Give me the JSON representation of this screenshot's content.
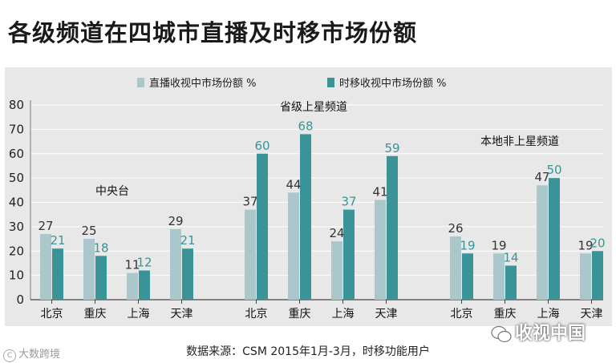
{
  "title": "各级频道在四城市直播及时移市场份额",
  "source": "数据来源：CSM 2015年1月-3月，时移功能用户",
  "watermarks": {
    "left_text": "大数跨境",
    "left_icon": "copyright-c-icon",
    "right_text": "收视中国",
    "right_icon": "wechat-logo-icon"
  },
  "colors": {
    "live": "#aac8cb",
    "timeshift": "#3a9497",
    "live_label": "#333333",
    "timeshift_label": "#3a9497",
    "panel_bg": "#e8e8e8",
    "grid": "#ffffff"
  },
  "chart_data": {
    "type": "bar",
    "ylim": [
      0,
      80
    ],
    "yticks": [
      0,
      10,
      20,
      30,
      40,
      50,
      60,
      70,
      80
    ],
    "legend": {
      "placement": "top",
      "entries": [
        "直播收视中市场份额 %",
        "时移收视中市场份额 %"
      ]
    },
    "groups": [
      {
        "name": "中央台",
        "categories": [
          "北京",
          "重庆",
          "上海",
          "天津"
        ],
        "series": [
          {
            "name": "直播收视中市场份额 %",
            "values": [
              27,
              25,
              11,
              29
            ]
          },
          {
            "name": "时移收视中市场份额 %",
            "values": [
              21,
              18,
              12,
              21
            ]
          }
        ]
      },
      {
        "name": "省级上星频道",
        "categories": [
          "北京",
          "重庆",
          "上海",
          "天津"
        ],
        "series": [
          {
            "name": "直播收视中市场份额 %",
            "values": [
              37,
              44,
              24,
              41
            ]
          },
          {
            "name": "时移收视中市场份额 %",
            "values": [
              60,
              68,
              37,
              59
            ]
          }
        ]
      },
      {
        "name": "本地非上星频道",
        "categories": [
          "北京",
          "重庆",
          "上海",
          "天津"
        ],
        "series": [
          {
            "name": "直播收视中市场份额 %",
            "values": [
              26,
              19,
              47,
              19
            ]
          },
          {
            "name": "时移收视中市场份额 %",
            "values": [
              19,
              14,
              50,
              20
            ]
          }
        ]
      }
    ]
  }
}
